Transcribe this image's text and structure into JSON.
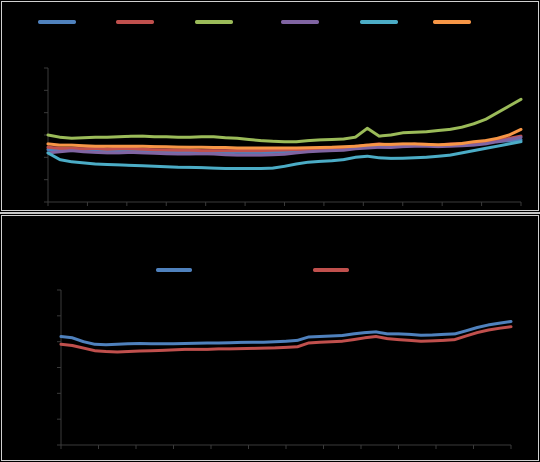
{
  "chart_data": [
    {
      "type": "line",
      "title": "",
      "xlabel": "",
      "ylabel": "",
      "legend_position": "top",
      "x_points": 41,
      "ylim": [
        0,
        6
      ],
      "series": [
        {
          "color": "#4f81bd",
          "values": [
            2.35,
            2.3,
            2.3,
            2.32,
            2.3,
            2.28,
            2.3,
            2.3,
            2.3,
            2.28,
            2.27,
            2.26,
            2.27,
            2.26,
            2.25,
            2.24,
            2.23,
            2.22,
            2.22,
            2.24,
            2.26,
            2.3,
            2.3,
            2.32,
            2.34,
            2.35,
            2.4,
            2.45,
            2.5,
            2.48,
            2.52,
            2.55,
            2.55,
            2.52,
            2.56,
            2.6,
            2.62,
            2.65,
            2.7,
            2.75,
            2.78
          ]
        },
        {
          "color": "#c0504d",
          "values": [
            2.45,
            2.4,
            2.4,
            2.38,
            2.4,
            2.36,
            2.38,
            2.38,
            2.36,
            2.34,
            2.33,
            2.32,
            2.32,
            2.3,
            2.3,
            2.3,
            2.3,
            2.3,
            2.3,
            2.32,
            2.33,
            2.35,
            2.36,
            2.38,
            2.4,
            2.42,
            2.5,
            2.55,
            2.6,
            2.55,
            2.58,
            2.6,
            2.58,
            2.55,
            2.6,
            2.62,
            2.65,
            2.72,
            2.75,
            2.85,
            2.95
          ]
        },
        {
          "color": "#9bbb59",
          "values": [
            3.0,
            2.9,
            2.85,
            2.88,
            2.9,
            2.9,
            2.92,
            2.94,
            2.95,
            2.92,
            2.92,
            2.9,
            2.9,
            2.92,
            2.92,
            2.88,
            2.85,
            2.8,
            2.75,
            2.72,
            2.7,
            2.7,
            2.75,
            2.78,
            2.8,
            2.82,
            2.9,
            3.3,
            2.95,
            3.0,
            3.1,
            3.12,
            3.15,
            3.2,
            3.25,
            3.35,
            3.5,
            3.7,
            4.0,
            4.3,
            4.6
          ]
        },
        {
          "color": "#8064a2",
          "values": [
            2.2,
            2.25,
            2.3,
            2.25,
            2.22,
            2.2,
            2.2,
            2.22,
            2.2,
            2.18,
            2.16,
            2.15,
            2.15,
            2.16,
            2.15,
            2.12,
            2.1,
            2.1,
            2.1,
            2.12,
            2.14,
            2.2,
            2.25,
            2.28,
            2.3,
            2.32,
            2.38,
            2.42,
            2.45,
            2.44,
            2.48,
            2.5,
            2.5,
            2.48,
            2.5,
            2.52,
            2.55,
            2.6,
            2.7,
            2.8,
            2.9
          ]
        },
        {
          "color": "#4bacc6",
          "values": [
            2.2,
            1.9,
            1.8,
            1.75,
            1.7,
            1.68,
            1.66,
            1.64,
            1.62,
            1.6,
            1.58,
            1.56,
            1.55,
            1.54,
            1.52,
            1.5,
            1.5,
            1.5,
            1.5,
            1.52,
            1.6,
            1.7,
            1.78,
            1.82,
            1.85,
            1.9,
            2.0,
            2.05,
            1.98,
            1.95,
            1.96,
            1.98,
            2.0,
            2.05,
            2.1,
            2.2,
            2.3,
            2.4,
            2.5,
            2.6,
            2.7
          ]
        },
        {
          "color": "#f79646",
          "values": [
            2.6,
            2.55,
            2.55,
            2.52,
            2.5,
            2.5,
            2.5,
            2.5,
            2.5,
            2.48,
            2.47,
            2.46,
            2.45,
            2.45,
            2.44,
            2.44,
            2.42,
            2.42,
            2.42,
            2.42,
            2.42,
            2.42,
            2.43,
            2.44,
            2.45,
            2.47,
            2.5,
            2.55,
            2.58,
            2.58,
            2.6,
            2.6,
            2.58,
            2.56,
            2.58,
            2.62,
            2.7,
            2.75,
            2.85,
            3.0,
            3.25
          ]
        }
      ]
    },
    {
      "type": "line",
      "title": "",
      "xlabel": "",
      "ylabel": "",
      "legend_position": "top",
      "x_points": 41,
      "ylim": [
        0,
        6
      ],
      "series": [
        {
          "color": "#4f81bd",
          "values": [
            4.2,
            4.15,
            4.0,
            3.9,
            3.88,
            3.9,
            3.92,
            3.93,
            3.92,
            3.92,
            3.92,
            3.93,
            3.94,
            3.95,
            3.95,
            3.96,
            3.97,
            3.98,
            3.98,
            4.0,
            4.02,
            4.05,
            4.18,
            4.2,
            4.22,
            4.24,
            4.3,
            4.35,
            4.38,
            4.3,
            4.3,
            4.28,
            4.25,
            4.26,
            4.28,
            4.3,
            4.42,
            4.55,
            4.65,
            4.72,
            4.78
          ]
        },
        {
          "color": "#c0504d",
          "values": [
            3.9,
            3.85,
            3.75,
            3.65,
            3.62,
            3.6,
            3.62,
            3.64,
            3.65,
            3.66,
            3.68,
            3.7,
            3.7,
            3.7,
            3.72,
            3.72,
            3.73,
            3.74,
            3.75,
            3.76,
            3.78,
            3.8,
            3.95,
            3.98,
            4.0,
            4.02,
            4.08,
            4.15,
            4.2,
            4.12,
            4.08,
            4.05,
            4.02,
            4.03,
            4.05,
            4.08,
            4.22,
            4.35,
            4.45,
            4.52,
            4.58
          ]
        }
      ]
    }
  ]
}
